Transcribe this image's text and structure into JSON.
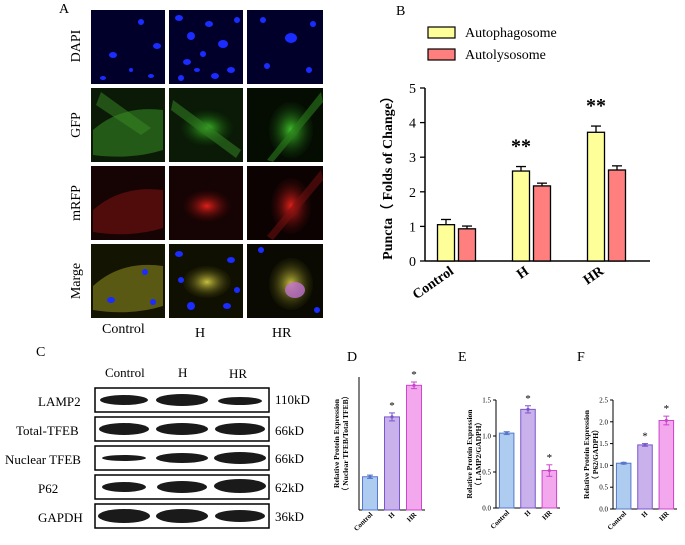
{
  "panel_a": {
    "letter": "A",
    "rows": [
      "DAPI",
      "GFP",
      "mRFP",
      "Marge"
    ],
    "columns": [
      "Control",
      "H",
      "HR"
    ]
  },
  "panel_b": {
    "letter": "B"
  },
  "panel_c": {
    "letter": "C",
    "lanes": [
      "Control",
      "H",
      "HR"
    ],
    "proteins": [
      "LAMP2",
      "Total-TFEB",
      "Nuclear TFEB",
      "P62",
      "GAPDH"
    ],
    "sizes": [
      "110kD",
      "66kD",
      "66kD",
      "62kD",
      "36kD"
    ]
  },
  "chart_data": [
    {
      "panel": "B",
      "type": "bar",
      "categories": [
        "Control",
        "H",
        "HR"
      ],
      "series": [
        {
          "name": "Autophagosome",
          "values": [
            1.05,
            2.6,
            3.72
          ],
          "errors": [
            0.15,
            0.13,
            0.18
          ],
          "color": "#ffff99"
        },
        {
          "name": "Autolysosome",
          "values": [
            0.93,
            2.17,
            2.63
          ],
          "errors": [
            0.08,
            0.08,
            0.12
          ],
          "color": "#ff7f7f"
        }
      ],
      "significance": [
        "",
        "**",
        "**"
      ],
      "ylabel": "Puncta（ Folds of Change）",
      "ylim": [
        0,
        5
      ],
      "yticks": [
        0,
        1,
        2,
        3,
        4,
        5
      ]
    },
    {
      "panel": "D",
      "type": "bar",
      "categories": [
        "Control",
        "H",
        "HR"
      ],
      "values": [
        1.0,
        2.8,
        3.75
      ],
      "errors": [
        0.05,
        0.12,
        0.1
      ],
      "significance": [
        "",
        "*",
        "*"
      ],
      "colors": [
        "#aecbf0",
        "#c9b2ec",
        "#f3a8ee"
      ],
      "edge_colors": [
        "#5577cc",
        "#7a55cc",
        "#cc44cc"
      ],
      "ylabel": "Relative Protein Expression\n（ Nuclear TFEB/Total TFEB）",
      "ylim": [
        0,
        4
      ],
      "yticks": []
    },
    {
      "panel": "E",
      "type": "bar",
      "categories": [
        "Control",
        "H",
        "HR"
      ],
      "values": [
        1.04,
        1.37,
        0.52
      ],
      "errors": [
        0.02,
        0.05,
        0.08
      ],
      "significance": [
        "",
        "*",
        "*"
      ],
      "colors": [
        "#aecbf0",
        "#c9b2ec",
        "#f3a8ee"
      ],
      "edge_colors": [
        "#5577cc",
        "#7a55cc",
        "#cc44cc"
      ],
      "ylabel": "Relative Protein Expression\n（ LAMP2/GADPH）",
      "ylim": [
        0,
        1.5
      ],
      "yticks": [
        0.0,
        0.5,
        1.0,
        1.5
      ]
    },
    {
      "panel": "F",
      "type": "bar",
      "categories": [
        "Control",
        "H",
        "HR"
      ],
      "values": [
        1.05,
        1.47,
        2.03
      ],
      "errors": [
        0.02,
        0.03,
        0.1
      ],
      "significance": [
        "",
        "*",
        "*"
      ],
      "colors": [
        "#aecbf0",
        "#c9b2ec",
        "#f3a8ee"
      ],
      "edge_colors": [
        "#5577cc",
        "#7a55cc",
        "#cc44cc"
      ],
      "ylabel": "Relative Protein Expression\n（ P62/GADPH）",
      "ylim": [
        0,
        2.5
      ],
      "yticks": [
        0.0,
        0.5,
        1.0,
        1.5,
        2.0,
        2.5
      ]
    }
  ]
}
